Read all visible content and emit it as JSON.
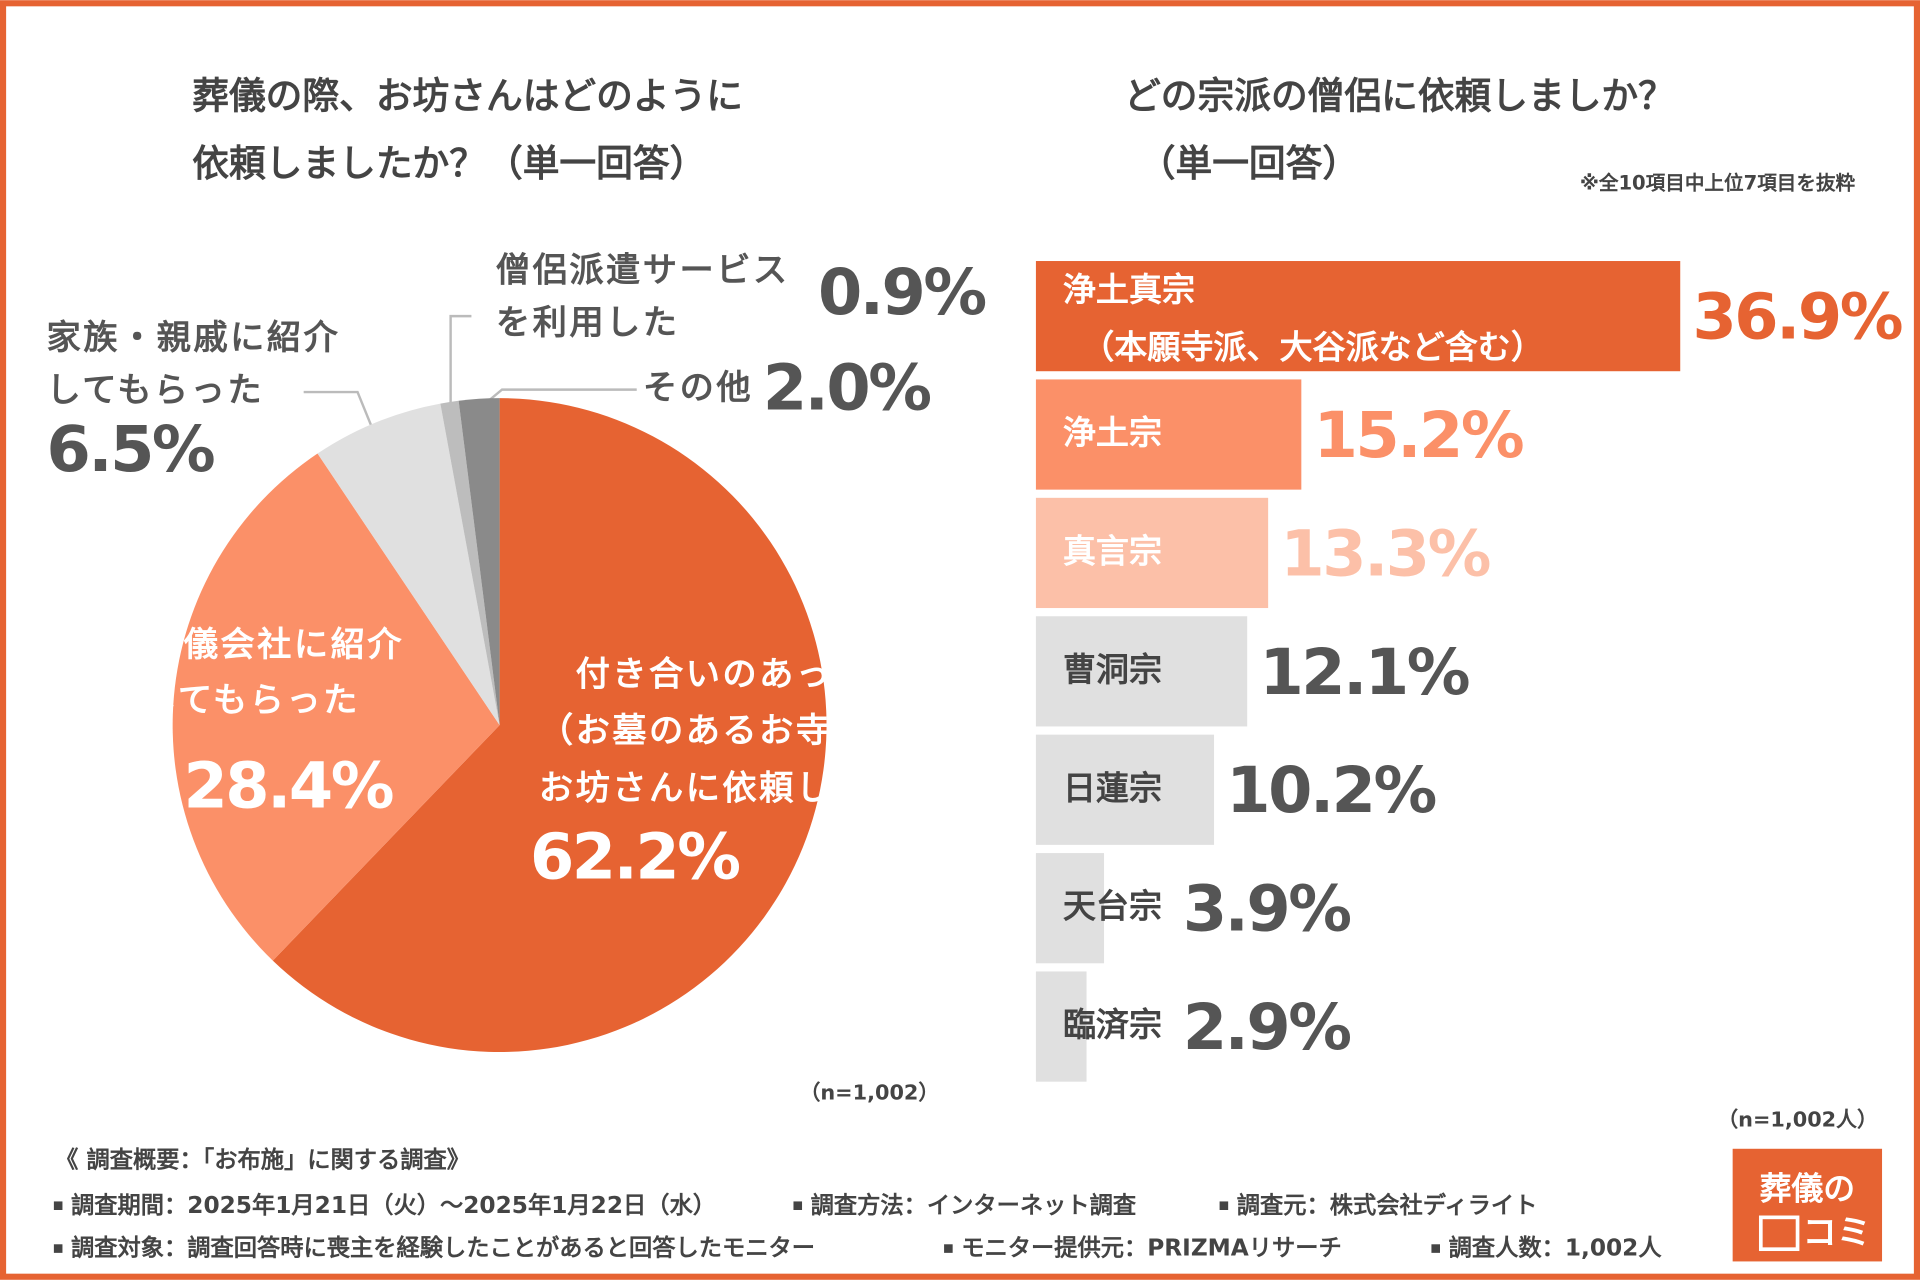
{
  "chart_data": [
    {
      "type": "pie",
      "title": [
        "葬儀の際、お坊さんはどのように",
        "依頼しましたか？（単一回答）"
      ],
      "categories": [
        [
          "付き合いのあった",
          "（お墓のあるお寺の）",
          "お坊さんに依頼した"
        ],
        [
          "葬儀会社に紹介",
          "してもらった"
        ],
        [
          "家族・親戚に紹介",
          "してもらった"
        ],
        [
          "僧侶派遣サービス",
          "を利用した"
        ],
        [
          "その他"
        ]
      ],
      "values": [
        62.2,
        28.4,
        6.5,
        0.9,
        2.0
      ],
      "value_labels": [
        "62.2%",
        "28.4%",
        "6.5%",
        "0.9%",
        "2.0%"
      ],
      "colors": [
        "#e66332",
        "#fb9068",
        "#e0e0e0",
        "#bdbdbd",
        "#8a8a8a"
      ],
      "note": "（n=1,002）"
    },
    {
      "type": "bar",
      "title": [
        "どの宗派の僧侶に依頼しましか？",
        "（単一回答）"
      ],
      "subtitle": "※全10項目中上位7項目を抜粋",
      "categories": [
        [
          "浄土真宗",
          "（本願寺派、大谷派など含む）"
        ],
        [
          "浄土宗"
        ],
        [
          "真言宗"
        ],
        [
          "曹洞宗"
        ],
        [
          "日蓮宗"
        ],
        [
          "天台宗"
        ],
        [
          "臨済宗"
        ]
      ],
      "values": [
        36.9,
        15.2,
        13.3,
        12.1,
        10.2,
        3.9,
        2.9
      ],
      "value_labels": [
        "36.9%",
        "15.2%",
        "13.3%",
        "12.1%",
        "10.2%",
        "3.9%",
        "2.9%"
      ],
      "colors": [
        "#e66332",
        "#fb9068",
        "#fcc0a8",
        "#e0e0e0",
        "#e0e0e0",
        "#e0e0e0",
        "#e0e0e0"
      ],
      "value_label_colors": [
        "#e66332",
        "#fb9068",
        "#fcc0a8",
        "#555555",
        "#555555",
        "#555555",
        "#555555"
      ],
      "note": "（n=1,002人）"
    }
  ],
  "footer": {
    "heading": "《 調査概要：「お布施」に関する調査》",
    "rows": [
      [
        "調査期間：2025年1月21日（火）～2025年1月22日（水）",
        "調査方法：インターネット調査",
        "調査元：株式会社ディライト"
      ],
      [
        "調査対象：調査回答時に喪主を経験したことがあると回答したモニター",
        "モニター提供元：PRIZMAリサーチ",
        "調査人数：1,002人"
      ]
    ]
  },
  "logo": [
    "葬儀の",
    "コミ"
  ]
}
